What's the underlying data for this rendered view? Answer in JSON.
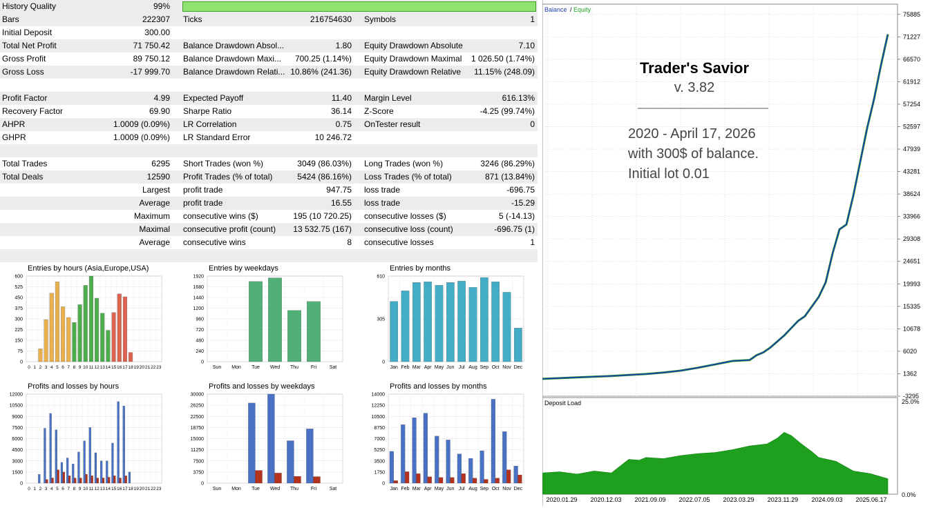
{
  "report": {
    "rows": [
      {
        "shade": true,
        "cells": [
          "History Quality",
          "99%",
          "",
          "",
          "",
          ""
        ],
        "bar": true
      },
      {
        "shade": true,
        "cells": [
          "Bars",
          "222307",
          "Ticks",
          "216754630",
          "Symbols",
          "1"
        ]
      },
      {
        "shade": false,
        "cells": [
          "Initial Deposit",
          "300.00",
          "",
          "",
          "",
          ""
        ]
      },
      {
        "shade": true,
        "cells": [
          "Total Net Profit",
          "71 750.42",
          "Balance Drawdown Absol...",
          "1.80",
          "Equity Drawdown Absolute",
          "7.10"
        ]
      },
      {
        "shade": false,
        "cells": [
          "Gross Profit",
          "89 750.12",
          "Balance Drawdown Maxi...",
          "700.25 (1.14%)",
          "Equity Drawdown Maximal",
          "1 026.50 (1.74%)"
        ]
      },
      {
        "shade": true,
        "cells": [
          "Gross Loss",
          "-17 999.70",
          "Balance Drawdown Relati...",
          "10.86% (241.36)",
          "Equity Drawdown Relative",
          "11.15% (248.09)"
        ]
      },
      {
        "shade": false,
        "cells": [
          "",
          "",
          "",
          "",
          "",
          ""
        ]
      },
      {
        "shade": true,
        "cells": [
          "Profit Factor",
          "4.99",
          "Expected Payoff",
          "11.40",
          "Margin Level",
          "616.13%"
        ]
      },
      {
        "shade": false,
        "cells": [
          "Recovery Factor",
          "69.90",
          "Sharpe Ratio",
          "36.14",
          "Z-Score",
          "-4.25 (99.74%)"
        ]
      },
      {
        "shade": true,
        "cells": [
          "AHPR",
          "1.0009 (0.09%)",
          "LR Correlation",
          "0.75",
          "OnTester result",
          "0"
        ]
      },
      {
        "shade": false,
        "cells": [
          "GHPR",
          "1.0009 (0.09%)",
          "LR Standard Error",
          "10 246.72",
          "",
          ""
        ]
      },
      {
        "shade": true,
        "cells": [
          "",
          "",
          "",
          "",
          "",
          ""
        ]
      },
      {
        "shade": false,
        "cells": [
          "Total Trades",
          "6295",
          "Short Trades (won %)",
          "3049 (86.03%)",
          "Long Trades (won %)",
          "3246 (86.29%)"
        ]
      },
      {
        "shade": true,
        "cells": [
          "Total Deals",
          "12590",
          "Profit Trades (% of total)",
          "5424 (86.16%)",
          "Loss Trades (% of total)",
          "871 (13.84%)"
        ]
      },
      {
        "shade": false,
        "cells": [
          "",
          "Largest",
          "profit trade",
          "947.75",
          "loss trade",
          "-696.75"
        ]
      },
      {
        "shade": true,
        "cells": [
          "",
          "Average",
          "profit trade",
          "16.55",
          "loss trade",
          "-15.29"
        ]
      },
      {
        "shade": false,
        "cells": [
          "",
          "Maximum",
          "consecutive wins ($)",
          "195 (10 720.25)",
          "consecutive losses ($)",
          "5 (-14.13)"
        ]
      },
      {
        "shade": true,
        "cells": [
          "",
          "Maximal",
          "consecutive profit (count)",
          "13 532.75 (167)",
          "consecutive loss (count)",
          "-696.75 (1)"
        ]
      },
      {
        "shade": false,
        "cells": [
          "",
          "Average",
          "consecutive wins",
          "8",
          "consecutive losses",
          "1"
        ]
      },
      {
        "shade": true,
        "cells": [
          "",
          "",
          "",
          "",
          "",
          ""
        ]
      }
    ]
  },
  "chart_data": [
    {
      "id": "entries-hours",
      "type": "bar",
      "title": "Entries by hours (Asia,Europe,USA)",
      "ylim": [
        0,
        600
      ],
      "yticks": [
        "600",
        "525",
        "450",
        "375",
        "300",
        "225",
        "150",
        "75",
        "0"
      ],
      "categories": [
        "0",
        "1",
        "2",
        "3",
        "4",
        "5",
        "6",
        "7",
        "8",
        "9",
        "10",
        "11",
        "12",
        "13",
        "14",
        "15",
        "16",
        "17",
        "18",
        "19",
        "20",
        "21",
        "22",
        "23"
      ],
      "xlabels": [
        "0",
        "1",
        "2",
        "3",
        "4",
        "5",
        "6",
        "7",
        "8",
        "9",
        "10",
        "11",
        "12",
        "13",
        "14",
        "15",
        "16",
        "17",
        "18",
        "19",
        "20",
        "21",
        "22",
        "23"
      ],
      "values": [
        0,
        0,
        90,
        295,
        480,
        560,
        385,
        310,
        275,
        400,
        535,
        600,
        445,
        340,
        220,
        345,
        475,
        455,
        65,
        0,
        0,
        0,
        0,
        0
      ],
      "colors": [
        "#e8a83a",
        "#e8a83a",
        "#e8a83a",
        "#e8a83a",
        "#e8a83a",
        "#e8a83a",
        "#e8a83a",
        "#e8a83a",
        "#3aa53a",
        "#3aa53a",
        "#3aa53a",
        "#3aa53a",
        "#3aa53a",
        "#3aa53a",
        "#3aa53a",
        "#d9543c",
        "#d9543c",
        "#d9543c",
        "#d9543c",
        "#d9543c",
        "#d9543c",
        "#d9543c",
        "#d9543c",
        "#d9543c"
      ]
    },
    {
      "id": "entries-weekdays",
      "type": "bar",
      "title": "Entries by weekdays",
      "ylim": [
        0,
        1920
      ],
      "yticks": [
        "1920",
        "1680",
        "1440",
        "1200",
        "960",
        "720",
        "480",
        "240",
        "0"
      ],
      "categories": [
        "Sun",
        "Mon",
        "Tue",
        "Wed",
        "Thu",
        "Fri",
        "Sat"
      ],
      "xlabels": [
        "Sun",
        "Mon",
        "Tue",
        "Wed",
        "Thu",
        "Fri",
        "Sat"
      ],
      "values": [
        0,
        0,
        1800,
        1880,
        1150,
        1350,
        0
      ],
      "color": "#3fa86a"
    },
    {
      "id": "entries-months",
      "type": "bar",
      "title": "Entries by months",
      "ylim": [
        0,
        610
      ],
      "yticks": [
        "610",
        "",
        "305",
        "",
        "0"
      ],
      "categories": [
        "Jan",
        "Feb",
        "Mar",
        "Apr",
        "May",
        "Jun",
        "Jul",
        "Aug",
        "Sep",
        "Oct",
        "Nov",
        "Dec"
      ],
      "xlabels": [
        "Jan",
        "Feb",
        "Mar",
        "Apr",
        "May",
        "Jun",
        "Jul",
        "Aug",
        "Sep",
        "Oct",
        "Nov",
        "Dec"
      ],
      "values": [
        430,
        505,
        565,
        570,
        545,
        565,
        575,
        530,
        600,
        570,
        495,
        240
      ],
      "color": "#2fa5c2"
    },
    {
      "id": "pl-hours",
      "type": "bar",
      "title": "Profits and losses by hours",
      "ylim": [
        0,
        12000
      ],
      "yticks": [
        "12000",
        "10500",
        "9000",
        "7500",
        "6000",
        "4500",
        "3000",
        "1500",
        "0"
      ],
      "categories": [
        "0",
        "1",
        "2",
        "3",
        "4",
        "5",
        "6",
        "7",
        "8",
        "9",
        "10",
        "11",
        "12",
        "13",
        "14",
        "15",
        "16",
        "17",
        "18",
        "19",
        "20",
        "21",
        "22",
        "23"
      ],
      "xlabels": [
        "0",
        "1",
        "2",
        "3",
        "4",
        "5",
        "6",
        "7",
        "8",
        "9",
        "10",
        "11",
        "12",
        "13",
        "14",
        "15",
        "16",
        "17",
        "18",
        "19",
        "20",
        "21",
        "22",
        "23"
      ],
      "series": [
        {
          "name": "profit",
          "color": "#4a72c4",
          "values": [
            0,
            0,
            1200,
            7400,
            9400,
            7200,
            2800,
            3400,
            2600,
            4200,
            5700,
            7500,
            4100,
            3000,
            3000,
            5400,
            11000,
            10400,
            1500,
            0,
            0,
            0,
            0,
            0
          ]
        },
        {
          "name": "loss",
          "color": "#b3331f",
          "values": [
            0,
            0,
            0,
            500,
            700,
            1800,
            1500,
            1000,
            700,
            700,
            1200,
            1000,
            700,
            700,
            800,
            1000,
            700,
            1000,
            0,
            0,
            0,
            0,
            0,
            0
          ]
        }
      ]
    },
    {
      "id": "pl-weekdays",
      "type": "bar",
      "title": "Profits and losses by weekdays",
      "ylim": [
        0,
        30000
      ],
      "yticks": [
        "30000",
        "26250",
        "22500",
        "18750",
        "15000",
        "11250",
        "7500",
        "3750",
        "0"
      ],
      "categories": [
        "Sun",
        "Mon",
        "Tue",
        "Wed",
        "Thu",
        "Fri",
        "Sat"
      ],
      "xlabels": [
        "Sun",
        "Mon",
        "Tue",
        "Wed",
        "Thu",
        "Fri",
        "Sat"
      ],
      "series": [
        {
          "name": "profit",
          "color": "#4a72c4",
          "values": [
            0,
            0,
            27000,
            30000,
            14300,
            18300,
            0
          ]
        },
        {
          "name": "loss",
          "color": "#b3331f",
          "values": [
            0,
            0,
            4300,
            3400,
            2300,
            2200,
            0
          ]
        }
      ]
    },
    {
      "id": "pl-months",
      "type": "bar",
      "title": "Profits and losses by months",
      "ylim": [
        0,
        14000
      ],
      "yticks": [
        "14000",
        "12250",
        "10500",
        "8750",
        "7000",
        "5250",
        "3500",
        "1750",
        "0"
      ],
      "categories": [
        "Jan",
        "Feb",
        "Mar",
        "Apr",
        "May",
        "Jun",
        "Jul",
        "Aug",
        "Sep",
        "Oct",
        "Nov",
        "Dec"
      ],
      "xlabels": [
        "Jan",
        "Feb",
        "Mar",
        "Apr",
        "May",
        "Jun",
        "Jul",
        "Aug",
        "Sep",
        "Oct",
        "Nov",
        "Dec"
      ],
      "series": [
        {
          "name": "profit",
          "color": "#4a72c4",
          "values": [
            5000,
            9200,
            10300,
            11000,
            7400,
            6800,
            4600,
            3900,
            5100,
            13200,
            8100,
            2700
          ]
        },
        {
          "name": "loss",
          "color": "#b3331f",
          "values": [
            400,
            1800,
            1500,
            1000,
            900,
            900,
            1500,
            800,
            600,
            800,
            2100,
            1300
          ]
        }
      ]
    },
    {
      "id": "balance-equity",
      "type": "line",
      "legend": [
        "Balance",
        "Equity"
      ],
      "legend_colors": [
        "#1f3ea8",
        "#1ea01e"
      ],
      "ylim": [
        -3295,
        78000
      ],
      "yticks": [
        "75885",
        "71227",
        "66570",
        "61912",
        "57254",
        "52597",
        "47939",
        "43281",
        "38624",
        "33966",
        "29308",
        "24651",
        "19993",
        "15335",
        "10678",
        "6020",
        "1362",
        "-3295"
      ],
      "ytick_values": [
        75885,
        71227,
        66570,
        61912,
        57254,
        52597,
        47939,
        43281,
        38624,
        33966,
        29308,
        24651,
        19993,
        15335,
        10678,
        6020,
        1362,
        -3295
      ],
      "xticks": [
        "2020.01.29",
        "2020.12.03",
        "2021.09.09",
        "2022.07.05",
        "2023.03.29",
        "2023.11.29",
        "2024.09.03",
        "2025.06.17"
      ],
      "x": [
        0,
        0.05,
        0.1,
        0.15,
        0.2,
        0.25,
        0.3,
        0.35,
        0.4,
        0.45,
        0.5,
        0.55,
        0.6,
        0.62,
        0.64,
        0.66,
        0.7,
        0.74,
        0.76,
        0.78,
        0.8,
        0.82,
        0.84,
        0.86,
        0.88,
        0.9,
        0.92,
        0.94,
        0.96,
        0.98,
        1.0
      ],
      "series": [
        {
          "name": "Balance",
          "values": [
            300,
            450,
            600,
            750,
            900,
            1100,
            1300,
            1600,
            2000,
            2600,
            3300,
            4000,
            4200,
            5200,
            5800,
            6800,
            9300,
            12300,
            13300,
            15300,
            17300,
            20300,
            26300,
            31300,
            32300,
            38300,
            45300,
            52300,
            58300,
            65300,
            71750
          ]
        }
      ],
      "annotation": {
        "title": "Trader's Savior",
        "version": "v. 3.82",
        "lines": [
          "2020 - April 17, 2026",
          "with 300$ of balance.",
          "Initial lot 0.01"
        ]
      }
    },
    {
      "id": "deposit-load",
      "type": "area",
      "title": "Deposit Load",
      "ylim": [
        0,
        25
      ],
      "yticks": [
        "25.0%",
        "0.0%"
      ],
      "color": "#1ea01e",
      "x": [
        0,
        0.05,
        0.1,
        0.15,
        0.2,
        0.25,
        0.28,
        0.3,
        0.35,
        0.4,
        0.45,
        0.5,
        0.55,
        0.6,
        0.65,
        0.68,
        0.7,
        0.72,
        0.75,
        0.78,
        0.8,
        0.85,
        0.9,
        0.95,
        1.0
      ],
      "values": [
        5.5,
        5.8,
        5.2,
        6.0,
        5.5,
        9.0,
        8.8,
        9.5,
        9.2,
        10.0,
        10.5,
        10.8,
        11.5,
        12.5,
        13.0,
        14.5,
        16.0,
        15.2,
        13.0,
        11.0,
        9.5,
        8.5,
        6.0,
        5.3,
        4.0
      ]
    }
  ]
}
